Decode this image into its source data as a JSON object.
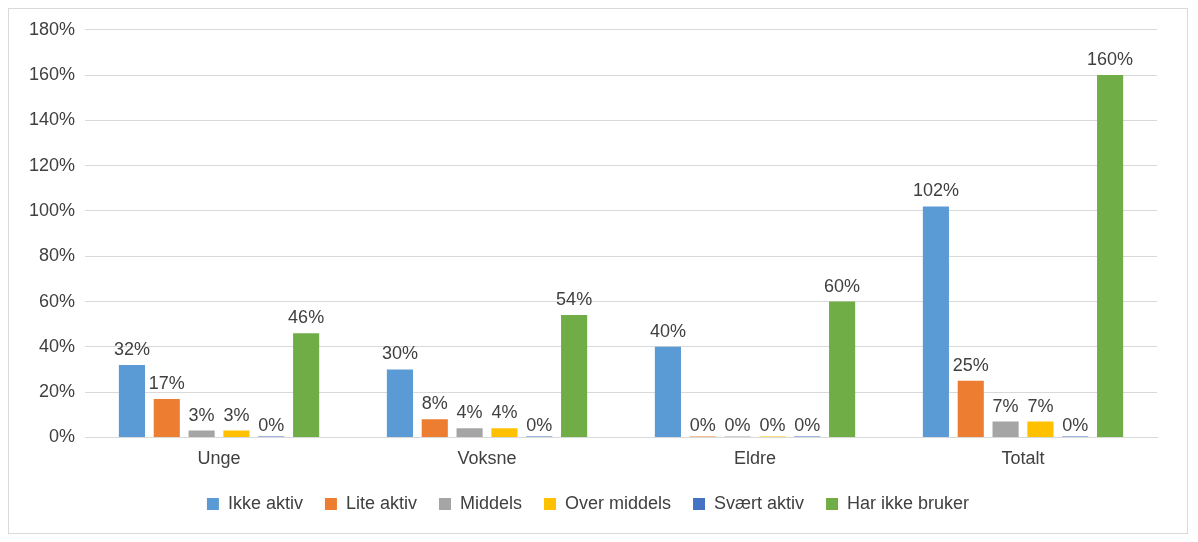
{
  "chart_data": {
    "type": "bar",
    "categories": [
      "Unge",
      "Voksne",
      "Eldre",
      "Totalt"
    ],
    "series": [
      {
        "name": "Ikke aktiv",
        "color": "#5b9bd5",
        "values": [
          32,
          30,
          40,
          102
        ],
        "value_labels": [
          "32%",
          "30%",
          "40%",
          "102%"
        ]
      },
      {
        "name": "Lite aktiv",
        "color": "#ed7d31",
        "values": [
          17,
          8,
          0,
          25
        ],
        "value_labels": [
          "17%",
          "8%",
          "0%",
          "25%"
        ]
      },
      {
        "name": "Middels",
        "color": "#a5a5a5",
        "values": [
          3,
          4,
          0,
          7
        ],
        "value_labels": [
          "3%",
          "4%",
          "0%",
          "7%"
        ]
      },
      {
        "name": "Over middels",
        "color": "#ffc000",
        "values": [
          3,
          4,
          0,
          7
        ],
        "value_labels": [
          "3%",
          "4%",
          "0%",
          "7%"
        ]
      },
      {
        "name": "Svært aktiv",
        "color": "#4472c4",
        "values": [
          0,
          0,
          0,
          0
        ],
        "value_labels": [
          "0%",
          "0%",
          "0%",
          "0%"
        ]
      },
      {
        "name": "Har ikke bruker",
        "color": "#70ad47",
        "values": [
          46,
          54,
          60,
          160
        ],
        "value_labels": [
          "46%",
          "54%",
          "60%",
          "160%"
        ]
      }
    ],
    "ylim": [
      0,
      180
    ],
    "yticks": [
      {
        "value": 0,
        "label": "0%"
      },
      {
        "value": 20,
        "label": "20%"
      },
      {
        "value": 40,
        "label": "40%"
      },
      {
        "value": 60,
        "label": "60%"
      },
      {
        "value": 80,
        "label": "80%"
      },
      {
        "value": 100,
        "label": "100%"
      },
      {
        "value": 120,
        "label": "120%"
      },
      {
        "value": 140,
        "label": "140%"
      },
      {
        "value": 160,
        "label": "160%"
      },
      {
        "value": 180,
        "label": "180%"
      }
    ],
    "grid": "y",
    "legend": "bottom"
  }
}
